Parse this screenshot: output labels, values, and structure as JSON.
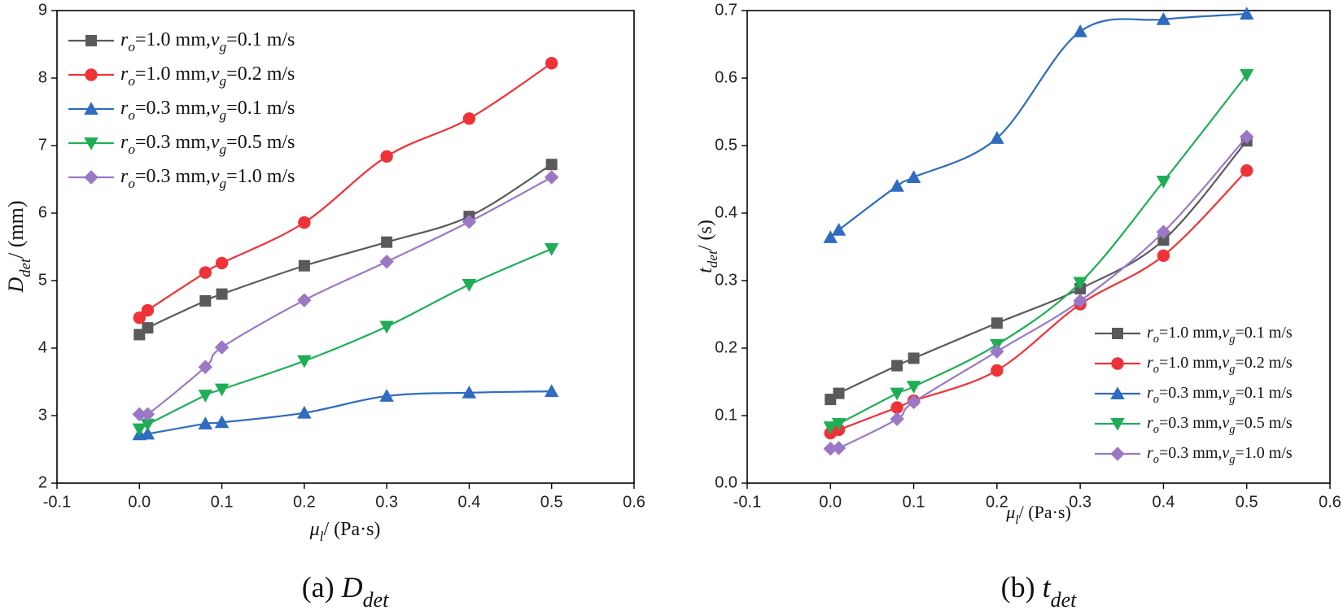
{
  "chart_data": [
    {
      "type": "line",
      "caption": "(a) Ddet",
      "xlabel": "μl/ (Pa·s)",
      "ylabel": "Ddet/ (mm)",
      "x": [
        0,
        0.01,
        0.08,
        0.1,
        0.2,
        0.3,
        0.4,
        0.5
      ],
      "xlim": [
        -0.1,
        0.6
      ],
      "xticks": [
        -0.1,
        {
          "value": 0,
          "label": "0.0"
        },
        0.1,
        0.2,
        0.3,
        0.4,
        0.5,
        0.6
      ],
      "ylim": [
        2,
        9
      ],
      "yticks": [
        2,
        3,
        4,
        5,
        6,
        7,
        8,
        9
      ],
      "legend": "upper left",
      "smooth": true,
      "series": [
        {
          "name": "ro=1.0 mm,vg=0.1 m/s",
          "color": "#5a5a5a",
          "marker": "square",
          "values": [
            4.2,
            4.3,
            4.7,
            4.8,
            5.22,
            5.57,
            5.95,
            6.72
          ]
        },
        {
          "name": "ro=1.0 mm,vg=0.2 m/s",
          "color": "#ee3338",
          "marker": "circle",
          "values": [
            4.45,
            4.56,
            5.12,
            5.26,
            5.86,
            6.84,
            7.4,
            8.22
          ]
        },
        {
          "name": "ro=0.3 mm,vg=0.1 m/s",
          "color": "#2f6cbf",
          "marker": "triangle-up",
          "values": [
            2.72,
            2.73,
            2.88,
            2.9,
            3.04,
            3.29,
            3.34,
            3.36
          ]
        },
        {
          "name": "ro=0.3 mm,vg=0.5 m/s",
          "color": "#1fae55",
          "marker": "triangle-down",
          "values": [
            2.8,
            2.87,
            3.3,
            3.39,
            3.81,
            4.32,
            4.94,
            5.47
          ]
        },
        {
          "name": "ro=0.3 mm,vg=1.0 m/s",
          "color": "#9b78c6",
          "marker": "diamond",
          "values": [
            3.02,
            3.02,
            3.72,
            4.01,
            4.71,
            5.28,
            5.87,
            6.53
          ]
        }
      ]
    },
    {
      "type": "line",
      "caption": "(b) tdet",
      "xlabel": "μl/ (Pa·s)",
      "ylabel": "tdet/ (s)",
      "x": [
        0,
        0.01,
        0.08,
        0.1,
        0.2,
        0.3,
        0.4,
        0.5
      ],
      "xlim": [
        -0.1,
        0.6
      ],
      "xticks": [
        -0.1,
        {
          "value": 0,
          "label": "0.0"
        },
        0.1,
        0.2,
        0.3,
        0.4,
        0.5,
        0.6
      ],
      "ylim": [
        0,
        0.7
      ],
      "yticks": [
        {
          "value": 0,
          "label": "0.0"
        },
        0.1,
        0.2,
        0.3,
        0.4,
        0.5,
        0.6,
        0.7
      ],
      "legend": "lower right",
      "smooth": true,
      "series": [
        {
          "name": "ro=1.0 mm,vg=0.1 m/s",
          "color": "#5a5a5a",
          "marker": "square",
          "values": [
            0.124,
            0.133,
            0.174,
            0.185,
            0.237,
            0.288,
            0.36,
            0.507
          ]
        },
        {
          "name": "ro=1.0 mm,vg=0.2 m/s",
          "color": "#ee3338",
          "marker": "circle",
          "values": [
            0.074,
            0.079,
            0.112,
            0.122,
            0.167,
            0.265,
            0.337,
            0.463
          ]
        },
        {
          "name": "ro=0.3 mm,vg=0.1 m/s",
          "color": "#2f6cbf",
          "marker": "triangle-up",
          "values": [
            0.364,
            0.375,
            0.44,
            0.453,
            0.511,
            0.669,
            0.687,
            0.695
          ]
        },
        {
          "name": "ro=0.3 mm,vg=0.5 m/s",
          "color": "#1fae55",
          "marker": "triangle-down",
          "values": [
            0.083,
            0.088,
            0.133,
            0.143,
            0.205,
            0.297,
            0.447,
            0.605
          ]
        },
        {
          "name": "ro=0.3 mm,vg=1.0 m/s",
          "color": "#9b78c6",
          "marker": "diamond",
          "values": [
            0.051,
            0.052,
            0.095,
            0.12,
            0.195,
            0.27,
            0.372,
            0.513
          ]
        }
      ]
    }
  ]
}
